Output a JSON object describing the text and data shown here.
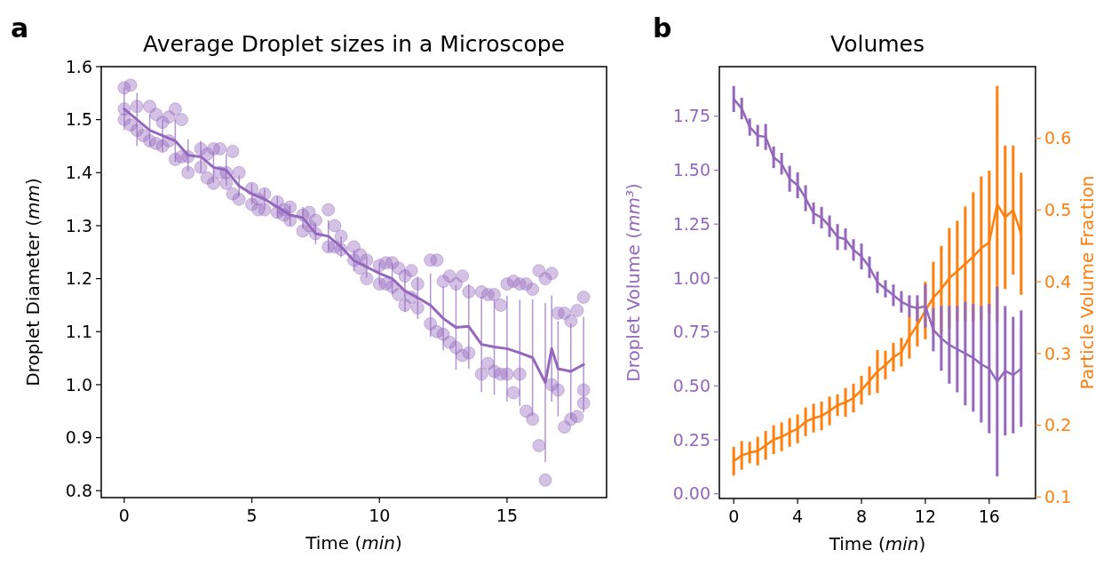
{
  "chart_data": [
    {
      "type": "line",
      "title": "Average Droplet sizes in a Microscope",
      "xlabel": "Time (min)",
      "ylabel": "Droplet Diameter (mm)",
      "annotations": [
        "a"
      ],
      "xlim": [
        -0.9,
        18.9
      ],
      "ylim": [
        0.787,
        1.6
      ],
      "xticks": [
        0,
        5,
        10,
        15
      ],
      "yticks": [
        0.8,
        0.9,
        {
          "value": 1.0,
          "label": "1.0"
        },
        1.1,
        1.2,
        1.3,
        1.4,
        1.5,
        1.6
      ],
      "series": [
        {
          "type": "scatter",
          "marker": "circle",
          "color": "#9467bd",
          "x": [
            0,
            0,
            0,
            0.25,
            0.25,
            0.5,
            0.5,
            0.75,
            1,
            1,
            1.25,
            1.25,
            1.5,
            1.5,
            1.75,
            1.75,
            2,
            2,
            2.25,
            2.25,
            2.5,
            2.5,
            3,
            3,
            3.25,
            3.25,
            3.5,
            3.5,
            3.75,
            3.75,
            4,
            4,
            4.25,
            4.25,
            4.5,
            4.5,
            5,
            5,
            5.25,
            5.25,
            5.5,
            5.5,
            6,
            6,
            6.25,
            6.25,
            6.5,
            6.5,
            7,
            7,
            7.25,
            7.25,
            7.5,
            7.5,
            8,
            8,
            8.25,
            8.25,
            8.5,
            8.5,
            9,
            9,
            9.25,
            9.25,
            9.5,
            9.5,
            10,
            10,
            10.25,
            10.25,
            10.5,
            10.5,
            10.75,
            10.75,
            11,
            11,
            11.25,
            11.25,
            11.5,
            11.5,
            12,
            12,
            12.25,
            12.25,
            12.5,
            12.5,
            12.75,
            12.75,
            13,
            13,
            13.25,
            13.25,
            13.5,
            13.5,
            14,
            14,
            14.25,
            14.25,
            14.5,
            14.5,
            14.75,
            14.75,
            15,
            15,
            15.25,
            15.25,
            15.5,
            15.5,
            15.75,
            15.75,
            16,
            16,
            16.25,
            16.25,
            16.5,
            16.5,
            16.75,
            16.75,
            17,
            17,
            17.25,
            17.25,
            17.5,
            17.5,
            17.75,
            17.75,
            18,
            18,
            18
          ],
          "values": [
            1.56,
            1.5,
            1.52,
            1.565,
            1.49,
            1.525,
            1.48,
            1.47,
            1.525,
            1.46,
            1.51,
            1.455,
            1.495,
            1.45,
            1.505,
            1.46,
            1.52,
            1.425,
            1.5,
            1.43,
            1.43,
            1.4,
            1.445,
            1.41,
            1.435,
            1.39,
            1.445,
            1.38,
            1.445,
            1.4,
            1.4,
            1.38,
            1.44,
            1.36,
            1.4,
            1.35,
            1.37,
            1.34,
            1.35,
            1.33,
            1.36,
            1.33,
            1.345,
            1.325,
            1.33,
            1.32,
            1.335,
            1.31,
            1.32,
            1.29,
            1.325,
            1.3,
            1.31,
            1.285,
            1.33,
            1.26,
            1.3,
            1.26,
            1.28,
            1.255,
            1.26,
            1.235,
            1.245,
            1.22,
            1.235,
            1.2,
            1.225,
            1.19,
            1.23,
            1.19,
            1.23,
            1.185,
            1.22,
            1.17,
            1.205,
            1.15,
            1.215,
            1.165,
            1.19,
            1.145,
            1.235,
            1.115,
            1.235,
            1.1,
            1.195,
            1.095,
            1.205,
            1.08,
            1.19,
            1.07,
            1.205,
            1.055,
            1.175,
            1.06,
            1.175,
            1.02,
            1.17,
            1.04,
            1.17,
            1.025,
            1.15,
            1.02,
            1.19,
            1.02,
            1.195,
            0.985,
            1.19,
            1.02,
            1.19,
            0.95,
            1.18,
            0.935,
            1.215,
            0.885,
            1.2,
            0.82,
            1.21,
            1.0,
            1.135,
            0.99,
            1.135,
            0.92,
            1.12,
            0.935,
            1.14,
            0.94,
            1.165,
            0.99,
            0.965
          ]
        },
        {
          "color": "#9467bd",
          "x": [
            0,
            0.5,
            1,
            1.5,
            2,
            2.5,
            3,
            3.5,
            4,
            4.5,
            5,
            5.5,
            6,
            6.5,
            7,
            7.5,
            8,
            8.5,
            9,
            9.5,
            10,
            10.5,
            11,
            11.5,
            12,
            12.5,
            13,
            13.5,
            14,
            14.5,
            15,
            15.5,
            16,
            16.5,
            16.75,
            17,
            17.5,
            18
          ],
          "values": [
            1.52,
            1.5,
            1.48,
            1.47,
            1.46,
            1.433,
            1.43,
            1.41,
            1.405,
            1.375,
            1.36,
            1.35,
            1.335,
            1.32,
            1.315,
            1.285,
            1.28,
            1.26,
            1.234,
            1.222,
            1.21,
            1.2,
            1.177,
            1.164,
            1.15,
            1.125,
            1.108,
            1.11,
            1.076,
            1.071,
            1.068,
            1.06,
            1.051,
            1.004,
            1.068,
            1.03,
            1.025,
            1.038
          ],
          "errors": [
            0.04,
            0.05,
            0.03,
            0.03,
            0.04,
            0.03,
            0.03,
            0.03,
            0.03,
            0.02,
            0.02,
            0.02,
            0.02,
            0.02,
            0.02,
            0.02,
            0.03,
            0.02,
            0.02,
            0.02,
            0.02,
            0.03,
            0.04,
            0.04,
            0.06,
            0.06,
            0.08,
            0.08,
            0.09,
            0.09,
            0.1,
            0.1,
            0.11,
            0.15,
            0.1,
            0.09,
            0.09,
            0.09
          ]
        }
      ]
    },
    {
      "type": "line",
      "title": "Volumes",
      "xlabel": "Time (min)",
      "ylabel": "Droplet Volume (mm³)",
      "y2label": "Particle Volume Fraction",
      "annotations": [
        "b"
      ],
      "xlim": [
        -0.9,
        18.9
      ],
      "ylim": [
        -0.022,
        1.98
      ],
      "y2lim": [
        0.098,
        0.7
      ],
      "xticks": [
        0,
        4,
        8,
        12,
        16
      ],
      "yticks": [
        {
          "value": 0,
          "label": "0.00"
        },
        0.25,
        {
          "value": 0.5,
          "label": "0.50"
        },
        0.75,
        {
          "value": 1,
          "label": "1.00"
        },
        1.25,
        {
          "value": 1.5,
          "label": "1.50"
        },
        1.75
      ],
      "y2ticks": [
        0.1,
        0.2,
        0.3,
        0.4,
        0.5,
        0.6
      ],
      "series": [
        {
          "color": "#9467bd",
          "x": [
            0,
            0.5,
            1,
            1.5,
            2,
            2.5,
            3,
            3.5,
            4,
            4.5,
            5,
            5.5,
            6,
            6.5,
            7,
            7.5,
            8,
            8.5,
            9,
            9.5,
            10,
            10.5,
            11,
            11.5,
            12,
            12.5,
            13,
            13.5,
            14,
            14.5,
            15,
            15.5,
            16,
            16.5,
            17,
            17.5,
            18
          ],
          "values": [
            1.83,
            1.786,
            1.7,
            1.66,
            1.654,
            1.56,
            1.53,
            1.46,
            1.43,
            1.37,
            1.3,
            1.28,
            1.24,
            1.19,
            1.18,
            1.13,
            1.1,
            1.05,
            0.98,
            0.95,
            0.92,
            0.89,
            0.87,
            0.86,
            0.87,
            0.76,
            0.72,
            0.69,
            0.67,
            0.65,
            0.63,
            0.6,
            0.58,
            0.52,
            0.57,
            0.55,
            0.58
          ],
          "errors": [
            0.06,
            0.05,
            0.04,
            0.05,
            0.06,
            0.05,
            0.05,
            0.06,
            0.06,
            0.06,
            0.05,
            0.05,
            0.05,
            0.06,
            0.05,
            0.05,
            0.06,
            0.05,
            0.05,
            0.04,
            0.05,
            0.05,
            0.05,
            0.06,
            0.1,
            0.1,
            0.15,
            0.18,
            0.2,
            0.24,
            0.25,
            0.27,
            0.3,
            0.44,
            0.3,
            0.27,
            0.27
          ]
        },
        {
          "axis": "y2",
          "color": "#ff7f0e",
          "x": [
            0,
            0.5,
            1,
            1.5,
            2,
            2.5,
            3,
            3.5,
            4,
            4.5,
            5,
            5.5,
            6,
            6.5,
            7,
            7.5,
            8,
            8.5,
            9,
            9.5,
            10,
            10.5,
            11,
            11.5,
            12,
            12.5,
            13,
            13.5,
            14,
            14.5,
            15,
            15.5,
            16,
            16.5,
            17,
            17.5,
            18
          ],
          "values": [
            0.15,
            0.158,
            0.162,
            0.164,
            0.172,
            0.18,
            0.184,
            0.19,
            0.195,
            0.205,
            0.21,
            0.213,
            0.22,
            0.228,
            0.232,
            0.238,
            0.249,
            0.262,
            0.275,
            0.284,
            0.295,
            0.302,
            0.323,
            0.34,
            0.36,
            0.378,
            0.39,
            0.405,
            0.415,
            0.425,
            0.435,
            0.447,
            0.455,
            0.508,
            0.49,
            0.5,
            0.467
          ],
          "errors": [
            0.02,
            0.02,
            0.015,
            0.02,
            0.02,
            0.02,
            0.02,
            0.02,
            0.02,
            0.02,
            0.02,
            0.02,
            0.02,
            0.015,
            0.02,
            0.02,
            0.02,
            0.02,
            0.03,
            0.02,
            0.02,
            0.02,
            0.03,
            0.03,
            0.04,
            0.05,
            0.06,
            0.07,
            0.07,
            0.08,
            0.09,
            0.1,
            0.1,
            0.165,
            0.1,
            0.09,
            0.085
          ]
        }
      ]
    }
  ]
}
